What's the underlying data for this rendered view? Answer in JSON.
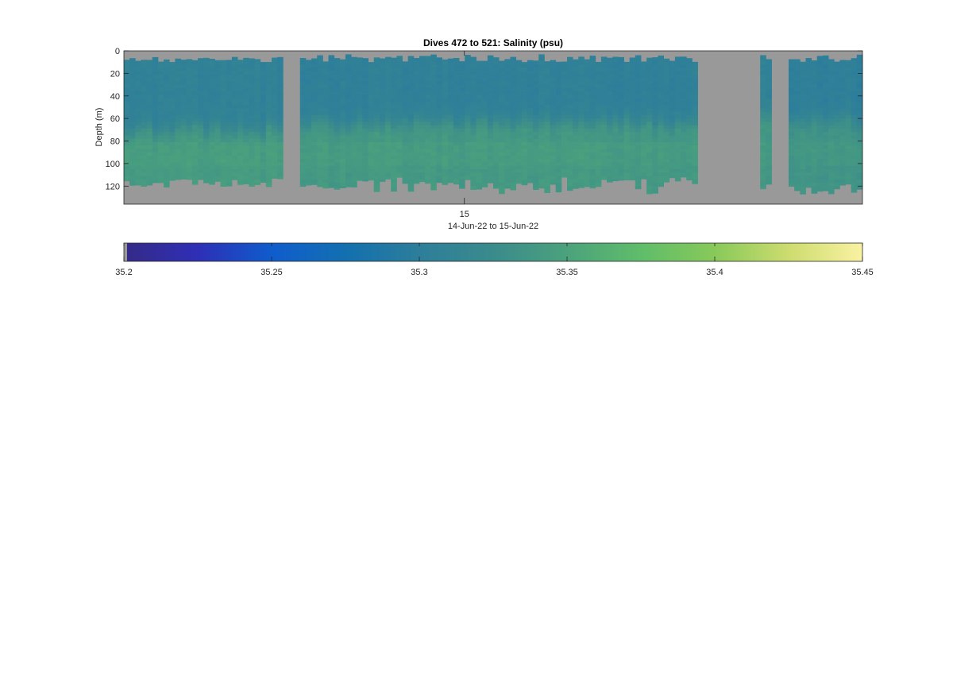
{
  "chart_data": {
    "type": "heatmap",
    "title": "Dives 472 to 521: Salinity (psu)",
    "ylabel": "Depth (m)",
    "xlabel": "14-Jun-22 to 15-Jun-22",
    "x_tick_labels": [
      "15"
    ],
    "y_tick_labels": [
      "0",
      "20",
      "40",
      "60",
      "80",
      "100",
      "120"
    ],
    "y_ticks": [
      0,
      20,
      40,
      60,
      80,
      100,
      120
    ],
    "ylim": [
      0,
      136
    ],
    "y_reversed": true,
    "x_range_days": [
      "14-Jun-22",
      "15-Jun-22"
    ],
    "x_tick_fraction": 0.461,
    "colorbar": {
      "tick_labels": [
        "35.2",
        "35.25",
        "35.3",
        "35.35",
        "35.4",
        "35.45"
      ],
      "ticks": [
        35.2,
        35.25,
        35.3,
        35.35,
        35.4,
        35.45
      ],
      "range": [
        35.2,
        35.45
      ],
      "colormap": "parula"
    },
    "nodata_color": "#999999",
    "profile_columns": 130,
    "profile_segments": [
      {
        "from": 0,
        "to": 0.219,
        "upper_salinity": 35.307,
        "lower_salinity": 35.342,
        "transition_depth": 68,
        "surface_depth": [
          5,
          10
        ],
        "bottom_depth": [
          113,
          121
        ]
      },
      {
        "from": 0.24,
        "to": 0.779,
        "upper_salinity": 35.305,
        "lower_salinity": 35.34,
        "transition_depth": 62,
        "surface_depth": [
          3,
          10
        ],
        "bottom_depth": [
          112,
          127
        ]
      },
      {
        "from": 0.859,
        "to": 0.879,
        "upper_salinity": 35.307,
        "lower_salinity": 35.338,
        "transition_depth": 52,
        "surface_depth": [
          3,
          10
        ],
        "bottom_depth": [
          118,
          124
        ]
      },
      {
        "from": 0.899,
        "to": 1.0,
        "upper_salinity": 35.303,
        "lower_salinity": 35.335,
        "transition_depth": 60,
        "surface_depth": [
          3,
          10
        ],
        "bottom_depth": [
          118,
          128
        ]
      }
    ]
  }
}
